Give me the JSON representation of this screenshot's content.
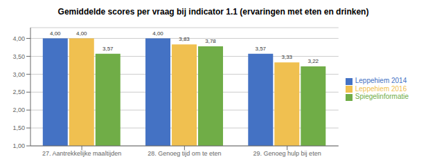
{
  "chart_data": {
    "type": "bar",
    "title": "Gemiddelde scores per vraag bij indicator 1.1 (ervaringen met eten en drinken)",
    "categories": [
      "27. Aantrekkelijke maaltijden",
      "28. Genoeg tijd om te eten",
      "29. Genoeg hulp bij eten"
    ],
    "series": [
      {
        "name": "Leppehiem 2014",
        "color": "#4472C4",
        "values": [
          4.0,
          4.0,
          3.57
        ],
        "value_labels": [
          "4,00",
          "4,00",
          "3,57"
        ]
      },
      {
        "name": "Leppehiem 2016",
        "color": "#F0C050",
        "values": [
          4.0,
          3.83,
          3.33
        ],
        "value_labels": [
          "4,00",
          "3,83",
          "3,33"
        ]
      },
      {
        "name": "Spiegelinformatie",
        "color": "#70AD47",
        "values": [
          3.57,
          3.78,
          3.22
        ],
        "value_labels": [
          "3,57",
          "3,78",
          "3,22"
        ]
      }
    ],
    "ylim": [
      1.0,
      4.3
    ],
    "yticks": [
      {
        "value": 1.0,
        "label": "1,00"
      },
      {
        "value": 1.5,
        "label": "1,50"
      },
      {
        "value": 2.0,
        "label": "2,00"
      },
      {
        "value": 2.5,
        "label": "2,50"
      },
      {
        "value": 3.0,
        "label": "3,00"
      },
      {
        "value": 3.5,
        "label": "3,50"
      },
      {
        "value": 4.0,
        "label": "4,00"
      }
    ],
    "grid": true,
    "legend": "right",
    "data_labels": true
  }
}
